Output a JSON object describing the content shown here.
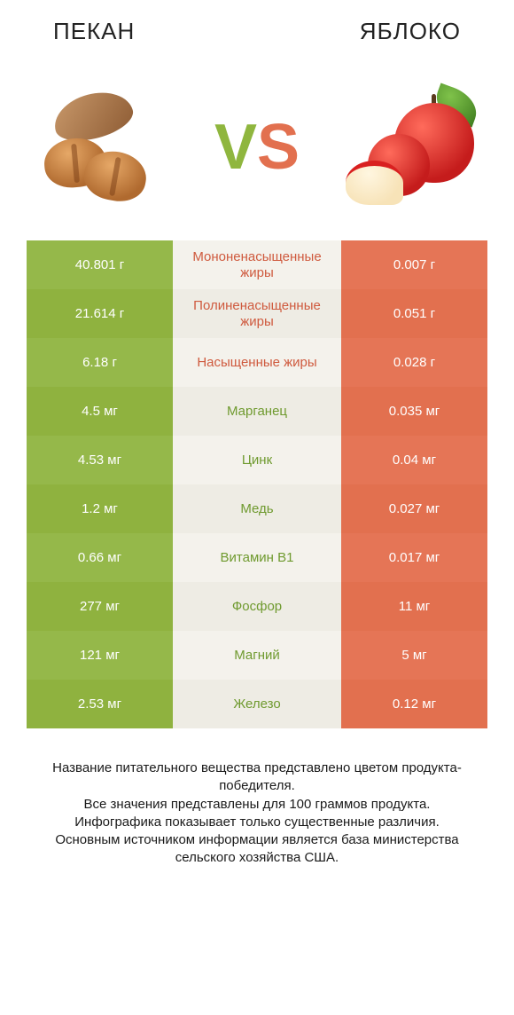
{
  "header": {
    "left_title": "ПЕКАН",
    "right_title": "ЯБЛОКО"
  },
  "vs": {
    "v": "V",
    "s": "S"
  },
  "colors": {
    "green_row_a": "#95b84a",
    "green_row_b": "#8fb23f",
    "orange_row_a": "#e57556",
    "orange_row_b": "#e2704f",
    "mid_bg_a": "#f4f2ec",
    "mid_bg_b": "#eeece4",
    "nutrient_text_green": "#6f9a2f",
    "nutrient_text_orange": "#cf5a3e"
  },
  "rows": [
    {
      "nutrient": "Мононенасыщенные жиры",
      "nutrient_color": "orange",
      "left": "40.801 г",
      "right": "0.007 г"
    },
    {
      "nutrient": "Полиненасыщенные жиры",
      "nutrient_color": "orange",
      "left": "21.614 г",
      "right": "0.051 г"
    },
    {
      "nutrient": "Насыщенные жиры",
      "nutrient_color": "orange",
      "left": "6.18 г",
      "right": "0.028 г"
    },
    {
      "nutrient": "Марганец",
      "nutrient_color": "green",
      "left": "4.5 мг",
      "right": "0.035 мг"
    },
    {
      "nutrient": "Цинк",
      "nutrient_color": "green",
      "left": "4.53 мг",
      "right": "0.04 мг"
    },
    {
      "nutrient": "Медь",
      "nutrient_color": "green",
      "left": "1.2 мг",
      "right": "0.027 мг"
    },
    {
      "nutrient": "Витамин B1",
      "nutrient_color": "green",
      "left": "0.66 мг",
      "right": "0.017 мг"
    },
    {
      "nutrient": "Фосфор",
      "nutrient_color": "green",
      "left": "277 мг",
      "right": "11 мг"
    },
    {
      "nutrient": "Магний",
      "nutrient_color": "green",
      "left": "121 мг",
      "right": "5 мг"
    },
    {
      "nutrient": "Железо",
      "nutrient_color": "green",
      "left": "2.53 мг",
      "right": "0.12 мг"
    }
  ],
  "footer_lines": [
    "Название питательного вещества представлено цветом продукта-победителя.",
    "Все значения представлены для 100 граммов продукта.",
    "Инфографика показывает только существенные различия.",
    "Основным источником информации является база министерства сельского хозяйства США."
  ]
}
